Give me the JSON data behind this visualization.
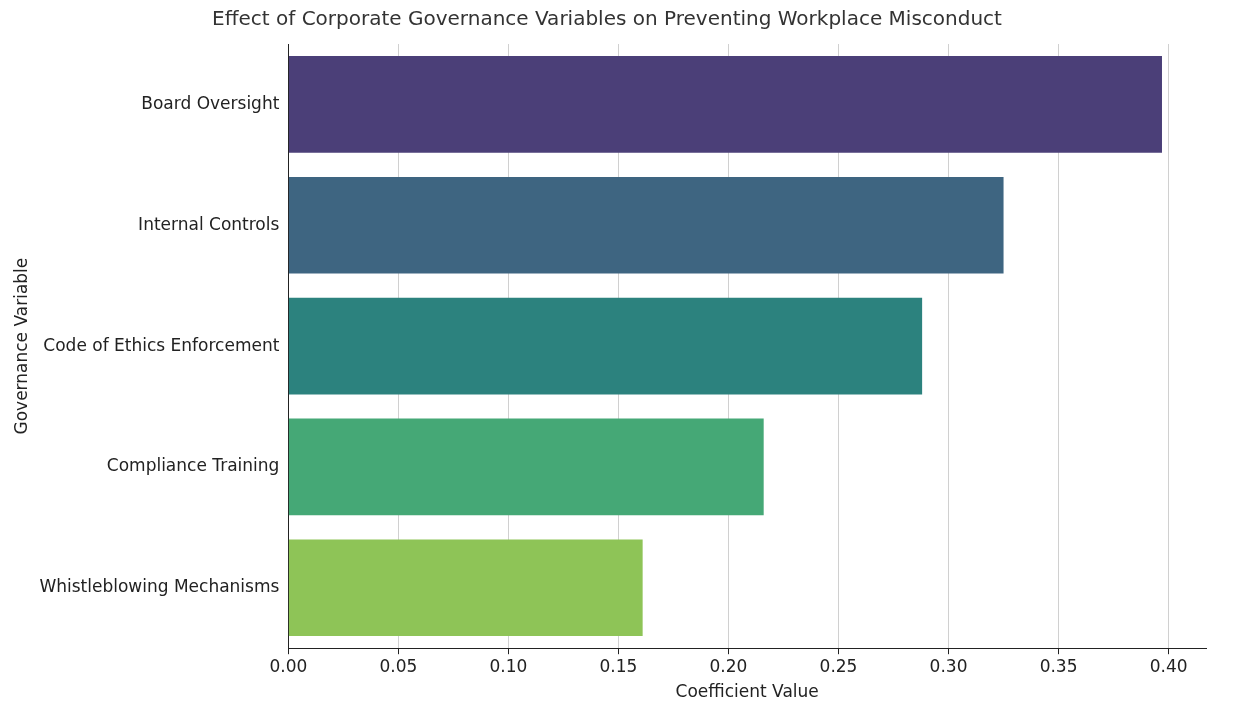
{
  "chart_data": {
    "type": "bar",
    "orientation": "horizontal",
    "title": "Effect of Corporate Governance Variables on Preventing Workplace Misconduct",
    "xlabel": "Coefficient Value",
    "ylabel": "Governance Variable",
    "categories": [
      "Board Oversight",
      "Internal Controls",
      "Code of Ethics Enforcement",
      "Compliance Training",
      "Whistleblowing Mechanisms"
    ],
    "values": [
      0.397,
      0.325,
      0.288,
      0.216,
      0.161
    ],
    "colors": [
      "#4b3f78",
      "#3e6581",
      "#2c827e",
      "#45a876",
      "#8ec457"
    ],
    "xlim": [
      0,
      0.417
    ],
    "xticks": [
      {
        "value": 0,
        "label": "0.00"
      },
      {
        "value": 0.05,
        "label": "0.05"
      },
      {
        "value": 0.1,
        "label": "0.10"
      },
      {
        "value": 0.15,
        "label": "0.15"
      },
      {
        "value": 0.2,
        "label": "0.20"
      },
      {
        "value": 0.25,
        "label": "0.25"
      },
      {
        "value": 0.3,
        "label": "0.30"
      },
      {
        "value": 0.35,
        "label": "0.35"
      },
      {
        "value": 0.4,
        "label": "0.40"
      }
    ],
    "grid": "x",
    "legend": false
  }
}
